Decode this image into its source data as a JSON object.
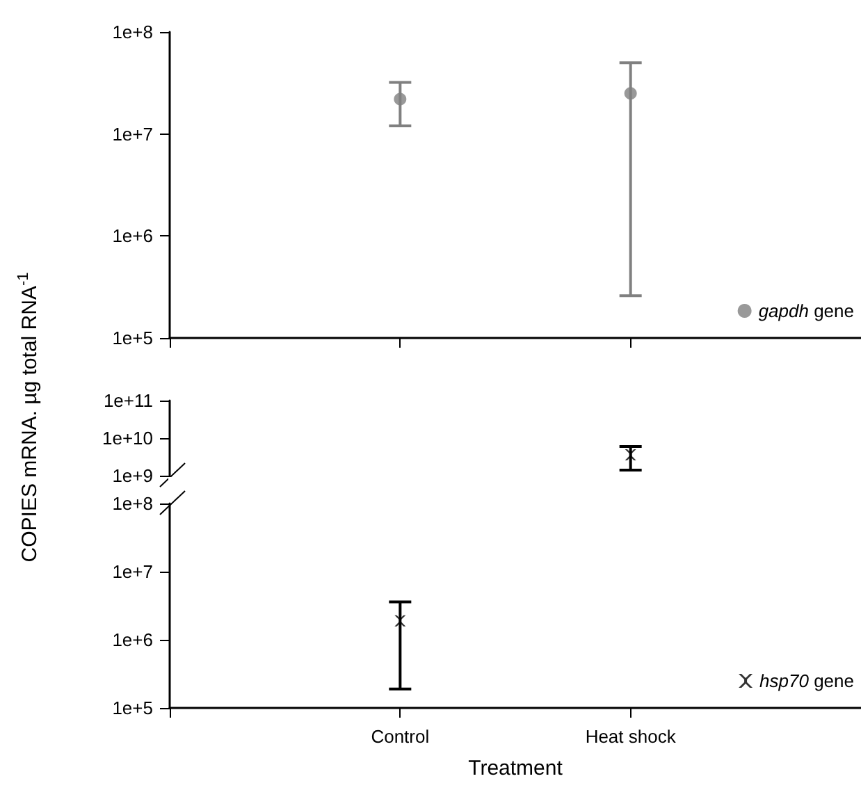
{
  "chart_data": [
    {
      "type": "scatter",
      "ylabel": "COPIES mRNA. µg total RNA$^{-1}$",
      "categories": [
        null,
        null
      ],
      "series": [
        {
          "name": "gapdh gene",
          "color": "#808080",
          "values": [
            22000000.0,
            25000000.0
          ],
          "errors": [
            [
              12000000.0,
              32000000.0
            ],
            [
              260000.0,
              50000000.0
            ]
          ]
        }
      ],
      "log": "y",
      "ylim": [
        100000.0,
        100000000.0
      ],
      "yticks": [
        {
          "value": 100000.0,
          "label": "1e+5"
        },
        {
          "value": 1000000.0,
          "label": "1e+6"
        },
        {
          "value": 10000000.0,
          "label": "1e+7"
        },
        {
          "value": 100000000.0,
          "label": "1e+8"
        }
      ],
      "tick_labels": "y",
      "marker": "circle",
      "legend": "bottom right"
    },
    {
      "type": "scatter",
      "categories": [
        null,
        null
      ],
      "series": [
        {
          "color": "#000000",
          "values": [
            null,
            3600000000.0
          ],
          "errors": [
            null,
            [
              1400000000.0,
              6000000000.0
            ]
          ]
        }
      ],
      "log": "y",
      "ylim": [
        1000000000.0,
        100000000000.0
      ],
      "yticks": [
        {
          "value": 1000000000.0,
          "label": "1e+9"
        },
        {
          "value": 10000000000.0,
          "label": "1e+10"
        },
        {
          "value": 100000000000.0,
          "label": "1e+11"
        }
      ],
      "tick_labels": "y",
      "marker": "cross"
    },
    {
      "type": "scatter",
      "xlabel": "Treatment",
      "categories": [
        "Control",
        "Heat shock"
      ],
      "series": [
        {
          "name": "hsp70 gene",
          "color": "#000000",
          "values": [
            1900000.0,
            null
          ],
          "errors": [
            [
              190000.0,
              3600000.0
            ],
            null
          ]
        }
      ],
      "log": "y",
      "ylim": [
        100000.0,
        100000000.0
      ],
      "yticks": [
        {
          "value": 100000.0,
          "label": "1e+5"
        },
        {
          "value": 1000000.0,
          "label": "1e+6"
        },
        {
          "value": 10000000.0,
          "label": "1e+7"
        },
        {
          "value": 100000000.0,
          "label": "1e+8"
        }
      ],
      "marker": "cross",
      "legend": "bottom right"
    }
  ]
}
